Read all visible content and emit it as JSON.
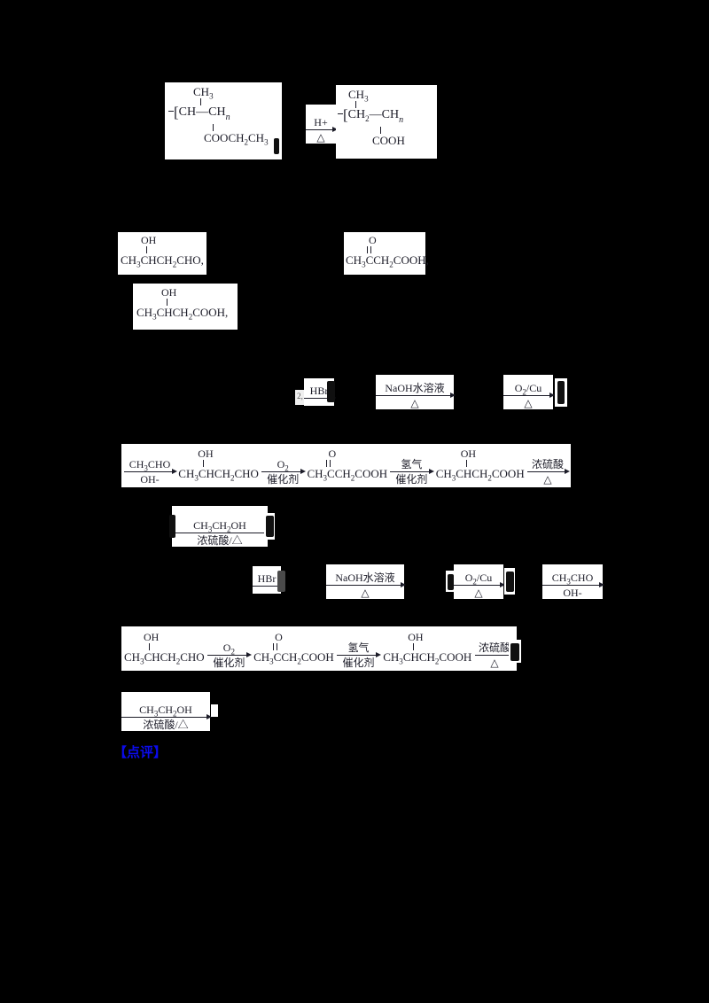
{
  "colors": {
    "page_bg": "#000000",
    "box_bg": "#ffffff",
    "ink": "#1c1c28",
    "footer_blue": "#0b0bea"
  },
  "polymer_left": {
    "methyl": "CH3",
    "open": "[",
    "unit1": "CH",
    "bond": "—",
    "unit2": "CH",
    "n": "n",
    "pendant": "COOCH2CH3"
  },
  "h_plus_arrow": {
    "above": "H+",
    "below": "△"
  },
  "polymer_right": {
    "methyl": "CH3",
    "open": "[",
    "unit1": "CH2",
    "bond": "—",
    "unit2": "CH",
    "n": "n",
    "pendant": "COOH"
  },
  "structures": {
    "hydroxy_aldehyde": {
      "top": "OH",
      "main": "CH3CHCH2CHO",
      "comma": ","
    },
    "keto_acid": {
      "top": "O",
      "main": "CH3CCH2COOH",
      "comma": ","
    },
    "hydroxy_acid": {
      "top": "OH",
      "main": "CH3CHCH2COOH",
      "comma": ","
    }
  },
  "arrow_row_top": {
    "fragment": "2,",
    "hbr": {
      "above": "HBr"
    },
    "naoh": {
      "above": "NaOH水溶液",
      "below": "△"
    },
    "o2cu": {
      "above": "O2/Cu",
      "below": "△"
    }
  },
  "chain_top": {
    "aldol": {
      "above": "CH3CHO",
      "below": "OH-"
    },
    "s1": {
      "top": "OH",
      "main": "CH3CHCH2CHO"
    },
    "oxid": {
      "above": "O2",
      "below": "催化剂"
    },
    "s2": {
      "top": "O",
      "main": "CH3CCH2COOH"
    },
    "hydrog": {
      "above": "氢气",
      "below": "催化剂"
    },
    "s3": {
      "top": "OH",
      "main": "CH3CHCH2COOH"
    },
    "ester": {
      "above": "浓硫酸",
      "below": "△"
    }
  },
  "ethanol_top": {
    "above": "CH3CH2OH",
    "below": "浓硫酸/△"
  },
  "arrow_row_bottom": {
    "hbr": {
      "above": "HBr"
    },
    "naoh": {
      "above": "NaOH水溶液",
      "below": "△"
    },
    "o2cu": {
      "above": "O2/Cu",
      "below": "△"
    },
    "aldol": {
      "above": "CH3CHO",
      "below": "OH-"
    }
  },
  "chain_bottom": {
    "s1": {
      "top": "OH",
      "main": "CH3CHCH2CHO"
    },
    "oxid": {
      "above": "O2",
      "below": "催化剂"
    },
    "s2": {
      "top": "O",
      "main": "CH3CCH2COOH"
    },
    "hydrog": {
      "above": "氢气",
      "below": "催化剂"
    },
    "s3": {
      "top": "OH",
      "main": "CH3CHCH2COOH"
    },
    "ester": {
      "above": "浓硫酸",
      "below": "△"
    }
  },
  "ethanol_bottom": {
    "above": "CH3CH2OH",
    "below": "浓硫酸/△"
  },
  "footer": {
    "label": "【点评】"
  }
}
